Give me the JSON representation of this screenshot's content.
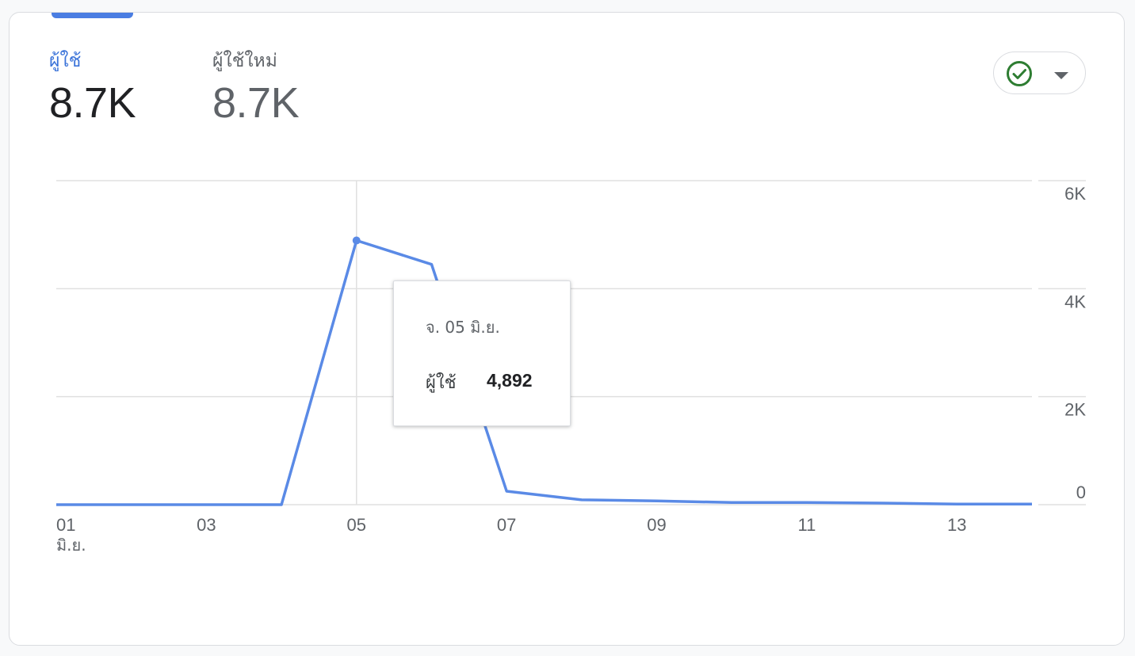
{
  "metrics": [
    {
      "label": "ผู้ใช้",
      "value": "8.7K",
      "active": true
    },
    {
      "label": "ผู้ใช้ใหม่",
      "value": "8.7K",
      "active": false
    }
  ],
  "status": {
    "icon": "check-circle-icon",
    "caret_icon": "caret-down-icon"
  },
  "tooltip": {
    "date": "จ. 05 มิ.ย.",
    "metric_label": "ผู้ใช้",
    "metric_value": "4,892"
  },
  "colors": {
    "accent": "#4a7de2",
    "line": "#5a8ae6",
    "check": "#2e7d32",
    "grid": "#e0e0e0"
  },
  "chart_data": {
    "type": "line",
    "x": [
      "01",
      "02",
      "03",
      "04",
      "05",
      "06",
      "07",
      "08",
      "09",
      "10",
      "11",
      "12",
      "13",
      "14"
    ],
    "x_tick_labels": [
      "01",
      "03",
      "05",
      "07",
      "09",
      "11",
      "13"
    ],
    "x_tick_sublabel": "มิ.ย.",
    "series": [
      {
        "name": "ผู้ใช้",
        "values": [
          0,
          0,
          0,
          0,
          4892,
          4450,
          250,
          90,
          70,
          40,
          40,
          30,
          10,
          10
        ]
      }
    ],
    "y_ticks": [
      "0",
      "2K",
      "4K",
      "6K"
    ],
    "ylim": [
      0,
      6000
    ],
    "grid": true,
    "highlight_index": 4
  }
}
